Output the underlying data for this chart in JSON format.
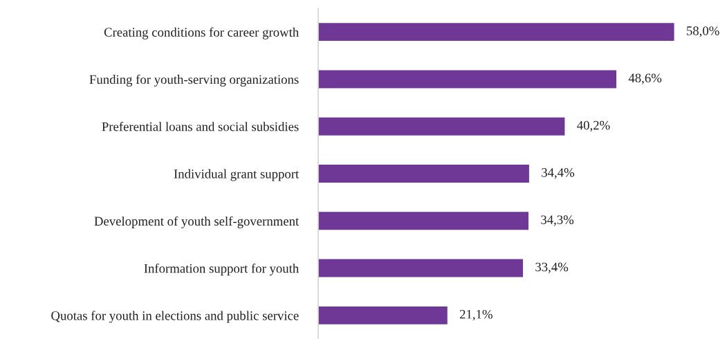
{
  "chart_data": {
    "type": "bar",
    "orientation": "horizontal",
    "categories": [
      "Creating conditions for career growth",
      "Funding for youth-serving organizations",
      "Preferential loans and social subsidies",
      "Individual grant support",
      "Development of youth self-government",
      "Information support for youth",
      "Quotas for youth in elections and public service"
    ],
    "values": [
      58.0,
      48.6,
      40.2,
      34.4,
      34.3,
      33.4,
      21.1
    ],
    "value_labels": [
      "58,0%",
      "48,6%",
      "40,2%",
      "34,4%",
      "34,3%",
      "33,4%",
      "21,1%"
    ],
    "color": "#703896",
    "grid": false,
    "legend": false
  }
}
